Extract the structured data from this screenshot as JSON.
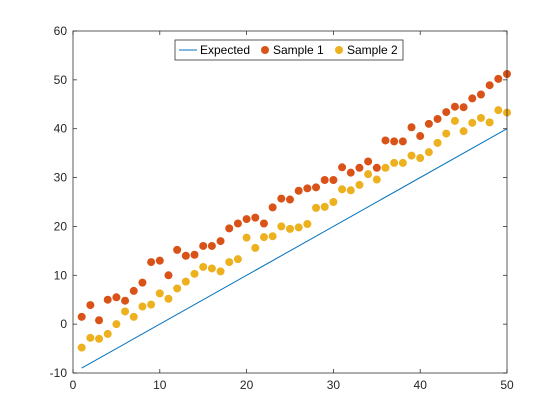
{
  "chart_data": {
    "type": "scatter",
    "title": "",
    "xlabel": "",
    "ylabel": "",
    "xlim": [
      0,
      50
    ],
    "ylim": [
      -10,
      60
    ],
    "grid": false,
    "legend_position": "top",
    "x_ticks": [
      "0",
      "10",
      "20",
      "30",
      "40",
      "50"
    ],
    "y_ticks": [
      "-10",
      "0",
      "10",
      "20",
      "30",
      "40",
      "50",
      "60"
    ],
    "series": [
      {
        "name": "Expected",
        "kind": "line",
        "color": "#0072BD",
        "x": [
          1,
          50
        ],
        "y": [
          -9,
          40
        ]
      },
      {
        "name": "Sample 1",
        "kind": "scatter",
        "color": "#D95319",
        "x": [
          1,
          2,
          3,
          4,
          5,
          6,
          7,
          8,
          9,
          10,
          11,
          12,
          13,
          14,
          15,
          16,
          17,
          18,
          19,
          20,
          21,
          22,
          23,
          24,
          25,
          26,
          27,
          28,
          29,
          30,
          31,
          32,
          33,
          34,
          35,
          36,
          37,
          38,
          39,
          40,
          41,
          42,
          43,
          44,
          45,
          46,
          47,
          48,
          49,
          50
        ],
        "y": [
          1.5,
          3.9,
          0.8,
          5.0,
          5.5,
          4.8,
          6.8,
          8.5,
          12.7,
          13.0,
          10.0,
          15.2,
          14.0,
          14.2,
          16.0,
          16.0,
          17.0,
          19.6,
          20.6,
          21.5,
          21.8,
          20.6,
          23.9,
          25.7,
          25.5,
          27.3,
          27.8,
          28.0,
          29.5,
          29.5,
          32.1,
          31.0,
          32.0,
          33.3,
          32.0,
          37.6,
          37.4,
          37.4,
          40.3,
          38.5,
          41.0,
          42.0,
          43.4,
          44.5,
          44.4,
          46.2,
          47.0,
          48.9,
          50.2,
          51.2
        ]
      },
      {
        "name": "Sample 2",
        "kind": "scatter",
        "color": "#EDB120",
        "x": [
          1,
          2,
          3,
          4,
          5,
          6,
          7,
          8,
          9,
          10,
          11,
          12,
          13,
          14,
          15,
          16,
          17,
          18,
          19,
          20,
          21,
          22,
          23,
          24,
          25,
          26,
          27,
          28,
          29,
          30,
          31,
          32,
          33,
          34,
          35,
          36,
          37,
          38,
          39,
          40,
          41,
          42,
          43,
          44,
          45,
          46,
          47,
          48,
          49,
          50
        ],
        "y": [
          -4.8,
          -2.8,
          -3.0,
          -2.0,
          0.0,
          2.6,
          1.5,
          3.6,
          4.0,
          6.3,
          5.2,
          7.3,
          8.7,
          10.3,
          11.7,
          11.4,
          10.8,
          12.7,
          13.3,
          17.7,
          15.6,
          17.8,
          18.0,
          20.0,
          19.5,
          19.8,
          20.5,
          23.8,
          24.0,
          25.0,
          27.6,
          27.4,
          28.5,
          30.7,
          29.6,
          32.0,
          33.0,
          33.0,
          34.5,
          34.0,
          35.2,
          37.1,
          39.0,
          41.6,
          39.5,
          41.2,
          42.2,
          41.3,
          43.8,
          43.3
        ]
      }
    ]
  }
}
